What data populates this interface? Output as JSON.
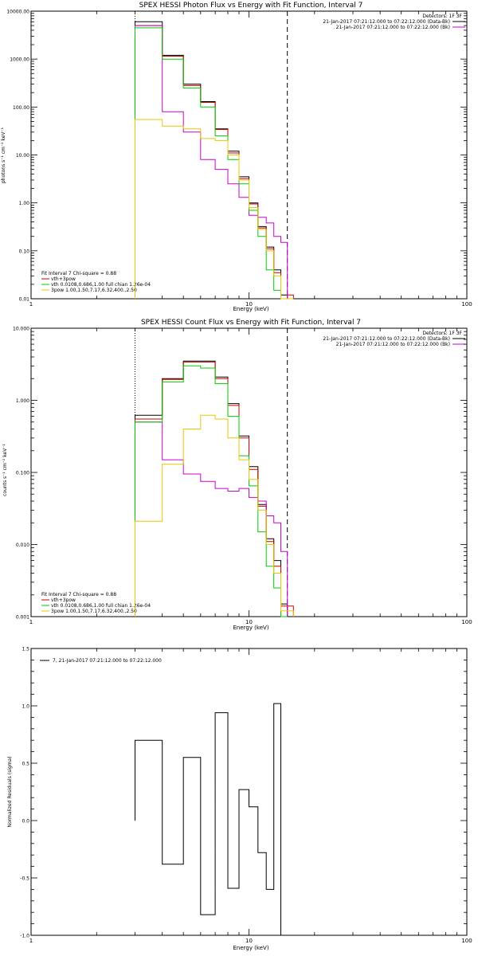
{
  "charts": [
    {
      "title": "SPEX HESSI Photon Flux vs Energy with Fit Function, Interval 7",
      "xlabel": "Energy (keV)",
      "ylabel": "photons s⁻¹ cm⁻² keV⁻¹",
      "legend_right": [
        "Detectors: 1F 3F",
        "21-Jan-2017 07:21:12.000 to 07:22:12.000 (Data-Bk)",
        "21-Jan-2017 07:21:12.000 to 07:22:12.000 (Bk)"
      ],
      "legend_left": [
        "Fit Interval 7   Chi-square = 0.88",
        "vth+3pow",
        "vth 0.0108,0.686,1.00  full chian 1.26e-04",
        "3pow 1.00,1.50,7.17,6.32,400.,2.50"
      ]
    },
    {
      "title": "SPEX HESSI Count Flux vs Energy with Fit Function, Interval 7",
      "xlabel": "Energy (keV)",
      "ylabel": "counts s⁻¹ cm⁻² keV⁻¹",
      "legend_right": [
        "Detectors: 1F 3F",
        "21-Jan-2017 07:21:12.000 to 07:22:12.000 (Data-Bk)",
        "21-Jan-2017 07:21:12.000 to 07:22:12.000 (Bk)"
      ],
      "legend_left": [
        "Fit Interval 7   Chi-square = 0.88",
        "vth+3pow",
        "vth 0.0108,0.686,1.00  full chian 1.26e-04",
        "3pow 1.00,1.50,7.17,6.32,400.,2.50"
      ]
    },
    {
      "title": "",
      "xlabel": "Energy (keV)",
      "ylabel": "Normalized Residuals (sigma)",
      "legend_left": [
        "7, 21-Jan-2017 07:21:12.000 to 07:22:12.000"
      ]
    }
  ],
  "chart_data": [
    {
      "type": "line",
      "title": "SPEX HESSI Photon Flux vs Energy with Fit Function, Interval 7",
      "xscale": "log",
      "yscale": "log",
      "xlim": [
        1,
        100
      ],
      "ylim": [
        0.01,
        10000
      ],
      "x_ticks": [
        1,
        10,
        100
      ],
      "x_tick_labels": [
        "1",
        "10",
        "100"
      ],
      "y_ticks": [
        0.01,
        0.1,
        1,
        10,
        100,
        1000,
        10000
      ],
      "y_tick_labels": [
        "0.01",
        "0.10",
        "1.00",
        "10.00",
        "100.00",
        "1000.00",
        "10000.00"
      ],
      "vlines": [
        {
          "x": 3.0,
          "style": "dotted",
          "color": "#000000"
        },
        {
          "x": 15.0,
          "style": "dashed",
          "color": "#000000"
        }
      ],
      "bin_edges": [
        3.0,
        4.0,
        5.0,
        6.0,
        7.0,
        8.0,
        9.0,
        10.0,
        11.0,
        12.0,
        13.0,
        14.0,
        15.0,
        16.0
      ],
      "series": [
        {
          "color": "#000000",
          "values": [
            6000,
            1200,
            300,
            130,
            35,
            12,
            3.5,
            1.0,
            0.32,
            0.12,
            0.04,
            0.012,
            null
          ]
        },
        {
          "color": "#cc0000",
          "values": [
            5000,
            1150,
            280,
            125,
            34,
            11,
            3.2,
            0.95,
            0.3,
            0.11,
            0.035,
            0.01,
            0.012
          ]
        },
        {
          "color": "#cc00cc",
          "values": [
            5000,
            80,
            30,
            8,
            5,
            2.5,
            1.3,
            0.55,
            0.5,
            0.38,
            0.2,
            0.15,
            null
          ]
        },
        {
          "color": "#00cc00",
          "values": [
            4500,
            1000,
            250,
            100,
            25,
            8,
            2.5,
            0.7,
            0.2,
            0.04,
            0.015,
            0.009,
            null
          ]
        },
        {
          "color": "#e6c800",
          "values": [
            55,
            40,
            35,
            22,
            20,
            10,
            3.0,
            0.8,
            0.28,
            0.1,
            0.03,
            0.008,
            0.01
          ]
        }
      ]
    },
    {
      "type": "line",
      "title": "SPEX HESSI Count Flux vs Energy with Fit Function, Interval 7",
      "xscale": "log",
      "yscale": "log",
      "xlim": [
        1,
        100
      ],
      "ylim": [
        0.001,
        10
      ],
      "x_ticks": [
        1,
        10,
        100
      ],
      "x_tick_labels": [
        "1",
        "10",
        "100"
      ],
      "y_ticks": [
        0.001,
        0.01,
        0.1,
        1,
        10
      ],
      "y_tick_labels": [
        "0.001",
        "0.010",
        "0.100",
        "1.000",
        "10.000"
      ],
      "vlines": [
        {
          "x": 3.0,
          "style": "dotted",
          "color": "#000000"
        },
        {
          "x": 15.0,
          "style": "dashed",
          "color": "#000000"
        }
      ],
      "bin_edges": [
        3.0,
        4.0,
        5.0,
        6.0,
        7.0,
        8.0,
        9.0,
        10.0,
        11.0,
        12.0,
        13.0,
        14.0,
        15.0,
        16.0
      ],
      "series": [
        {
          "color": "#000000",
          "values": [
            0.62,
            2.0,
            3.5,
            3.5,
            2.1,
            0.9,
            0.32,
            0.12,
            0.036,
            0.012,
            0.006,
            0.0015,
            null
          ]
        },
        {
          "color": "#cc0000",
          "values": [
            0.55,
            1.95,
            3.4,
            3.4,
            2.0,
            0.85,
            0.3,
            0.11,
            0.034,
            0.011,
            0.005,
            0.0014,
            0.0014
          ]
        },
        {
          "color": "#cc00cc",
          "values": [
            0.5,
            0.15,
            0.095,
            0.075,
            0.06,
            0.055,
            0.06,
            0.045,
            0.04,
            0.025,
            0.02,
            0.008,
            null
          ]
        },
        {
          "color": "#00cc00",
          "values": [
            0.5,
            1.8,
            3.0,
            2.8,
            1.7,
            0.6,
            0.17,
            0.065,
            0.015,
            0.005,
            0.0025,
            0.001,
            null
          ]
        },
        {
          "color": "#e6c800",
          "values": [
            0.021,
            0.13,
            0.4,
            0.62,
            0.55,
            0.3,
            0.15,
            0.08,
            0.03,
            0.01,
            0.004,
            0.0012,
            0.0012
          ]
        }
      ]
    },
    {
      "type": "line",
      "xscale": "log",
      "yscale": "linear",
      "xlim": [
        1,
        100
      ],
      "ylim": [
        -1.0,
        1.5
      ],
      "x_ticks": [
        1,
        10,
        100
      ],
      "x_tick_labels": [
        "1",
        "10",
        "100"
      ],
      "y_ticks": [
        -1.0,
        -0.5,
        0.0,
        0.5,
        1.0,
        1.5
      ],
      "y_tick_labels": [
        "-1.0",
        "-0.5",
        "0.0",
        "0.5",
        "1.0",
        "1.5"
      ],
      "bin_edges": [
        3.0,
        4.0,
        5.0,
        6.0,
        7.0,
        8.0,
        9.0,
        10.0,
        11.0,
        12.0,
        13.0,
        14.0,
        15.0
      ],
      "series": [
        {
          "color": "#000000",
          "values": [
            0.7,
            -0.38,
            0.55,
            -0.82,
            0.94,
            -0.59,
            0.27,
            0.12,
            -0.28,
            -0.6,
            1.02,
            null
          ]
        }
      ]
    }
  ]
}
